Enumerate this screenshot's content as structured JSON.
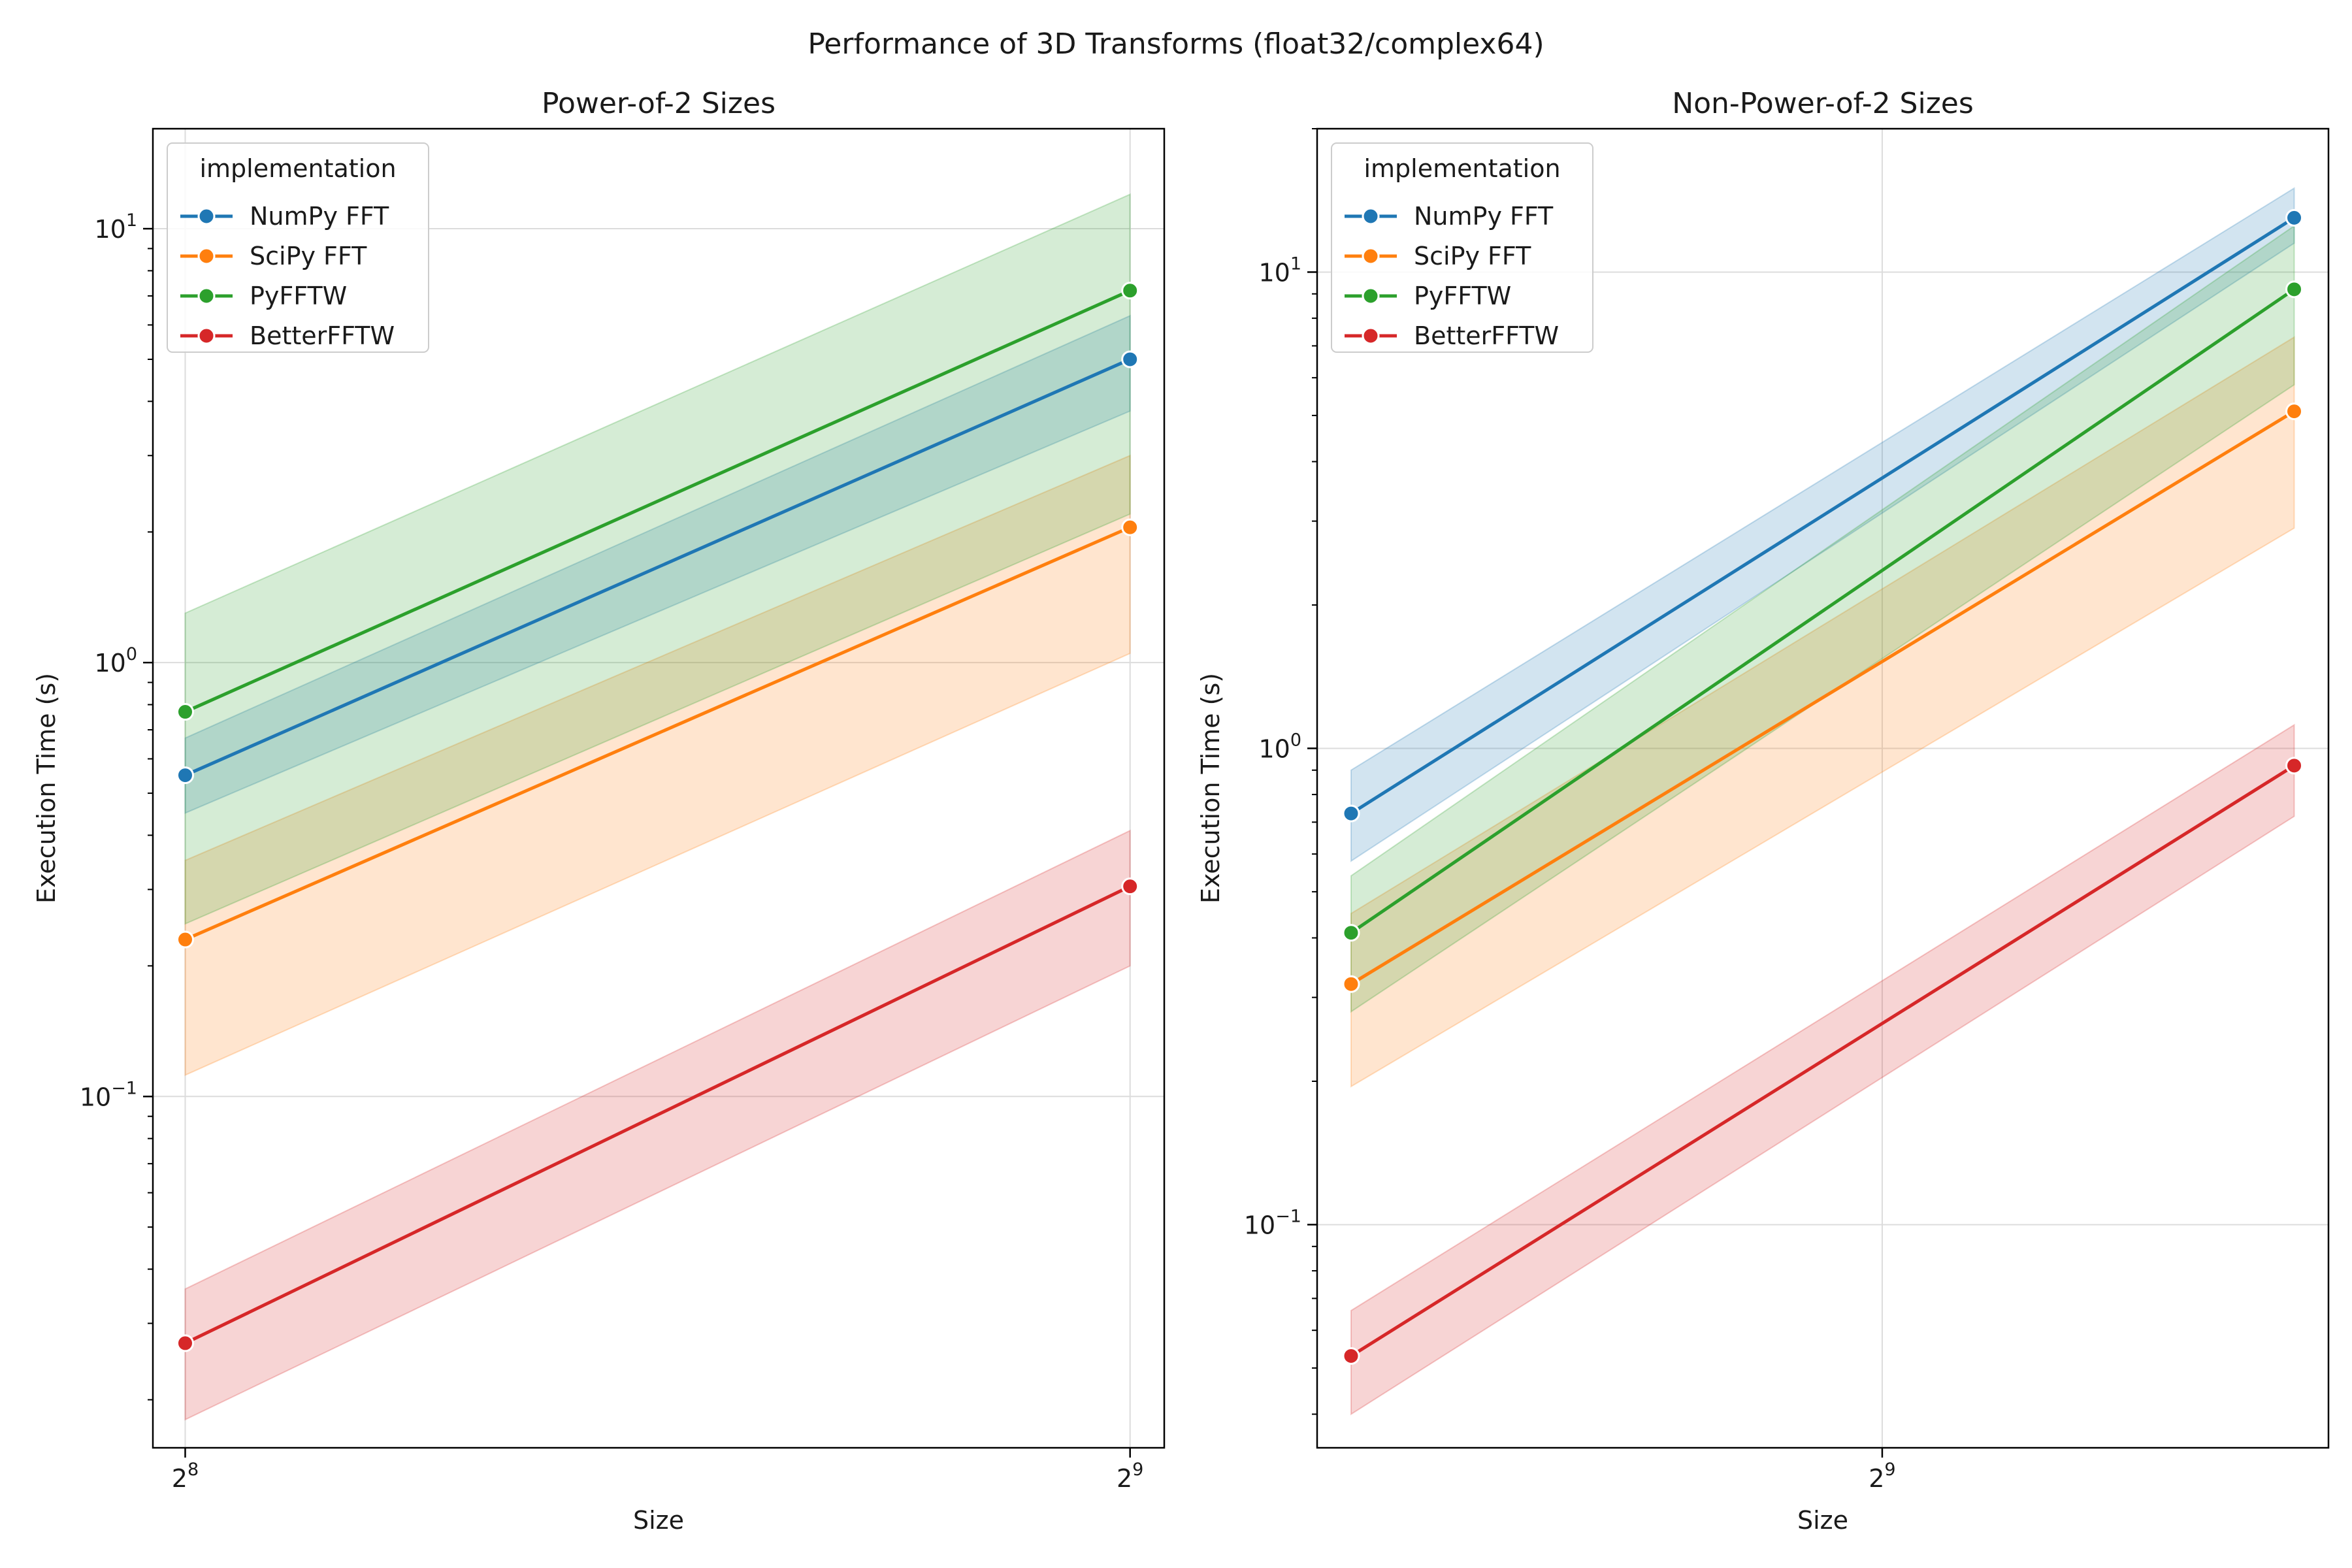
{
  "figure": {
    "suptitle": "Performance of 3D Transforms (float32/complex64)"
  },
  "chart_data": [
    {
      "type": "line",
      "title": "Power-of-2 Sizes",
      "xlabel": "Size",
      "ylabel": "Execution Time (s)",
      "xscale": "log2",
      "yscale": "log10",
      "x": [
        256,
        512
      ],
      "xlim": [
        250,
        525
      ],
      "ylim": [
        0.0155,
        17
      ],
      "xticks": [
        {
          "value": 256,
          "base": "2",
          "exp": "8"
        },
        {
          "value": 512,
          "base": "2",
          "exp": "9"
        }
      ],
      "yticks": [
        {
          "value": 0.1,
          "base": "10",
          "exp": "−1"
        },
        {
          "value": 1,
          "base": "10",
          "exp": "0"
        },
        {
          "value": 10,
          "base": "10",
          "exp": "1"
        }
      ],
      "grid": true,
      "legend": {
        "title": "implementation",
        "location": "upper-left"
      },
      "series": [
        {
          "name": "NumPy FFT",
          "color": "#1f77b4",
          "values": [
            0.55,
            5.0
          ],
          "ci_low": [
            0.45,
            3.8
          ],
          "ci_high": [
            0.67,
            6.3
          ]
        },
        {
          "name": "SciPy FFT",
          "color": "#ff7f0e",
          "values": [
            0.23,
            2.05
          ],
          "ci_low": [
            0.112,
            1.05
          ],
          "ci_high": [
            0.35,
            3.0
          ]
        },
        {
          "name": "PyFFTW",
          "color": "#2ca02c",
          "values": [
            0.77,
            7.2
          ],
          "ci_low": [
            0.25,
            2.2
          ],
          "ci_high": [
            1.3,
            12.0
          ]
        },
        {
          "name": "BetterFFTW",
          "color": "#d62728",
          "values": [
            0.027,
            0.305
          ],
          "ci_low": [
            0.018,
            0.2
          ],
          "ci_high": [
            0.036,
            0.41
          ]
        }
      ]
    },
    {
      "type": "line",
      "title": "Non-Power-of-2 Sizes",
      "xlabel": "Size",
      "ylabel": "Execution Time (s)",
      "xscale": "log2",
      "yscale": "log10",
      "x": [
        384,
        640
      ],
      "xlim": [
        377,
        652
      ],
      "ylim": [
        0.034,
        20
      ],
      "xticks": [
        {
          "value": 512,
          "base": "2",
          "exp": "9"
        }
      ],
      "yticks": [
        {
          "value": 0.1,
          "base": "10",
          "exp": "−1"
        },
        {
          "value": 1,
          "base": "10",
          "exp": "0"
        },
        {
          "value": 10,
          "base": "10",
          "exp": "1"
        }
      ],
      "grid": true,
      "legend": {
        "title": "implementation",
        "location": "upper-left"
      },
      "series": [
        {
          "name": "NumPy FFT",
          "color": "#1f77b4",
          "values": [
            0.73,
            13.0
          ],
          "ci_low": [
            0.58,
            11.5
          ],
          "ci_high": [
            0.9,
            15.0
          ]
        },
        {
          "name": "SciPy FFT",
          "color": "#ff7f0e",
          "values": [
            0.32,
            5.1
          ],
          "ci_low": [
            0.195,
            2.9
          ],
          "ci_high": [
            0.45,
            7.3
          ]
        },
        {
          "name": "PyFFTW",
          "color": "#2ca02c",
          "values": [
            0.41,
            9.2
          ],
          "ci_low": [
            0.28,
            5.8
          ],
          "ci_high": [
            0.54,
            12.5
          ]
        },
        {
          "name": "BetterFFTW",
          "color": "#d62728",
          "values": [
            0.053,
            0.92
          ],
          "ci_low": [
            0.04,
            0.72
          ],
          "ci_high": [
            0.066,
            1.12
          ]
        }
      ]
    }
  ]
}
